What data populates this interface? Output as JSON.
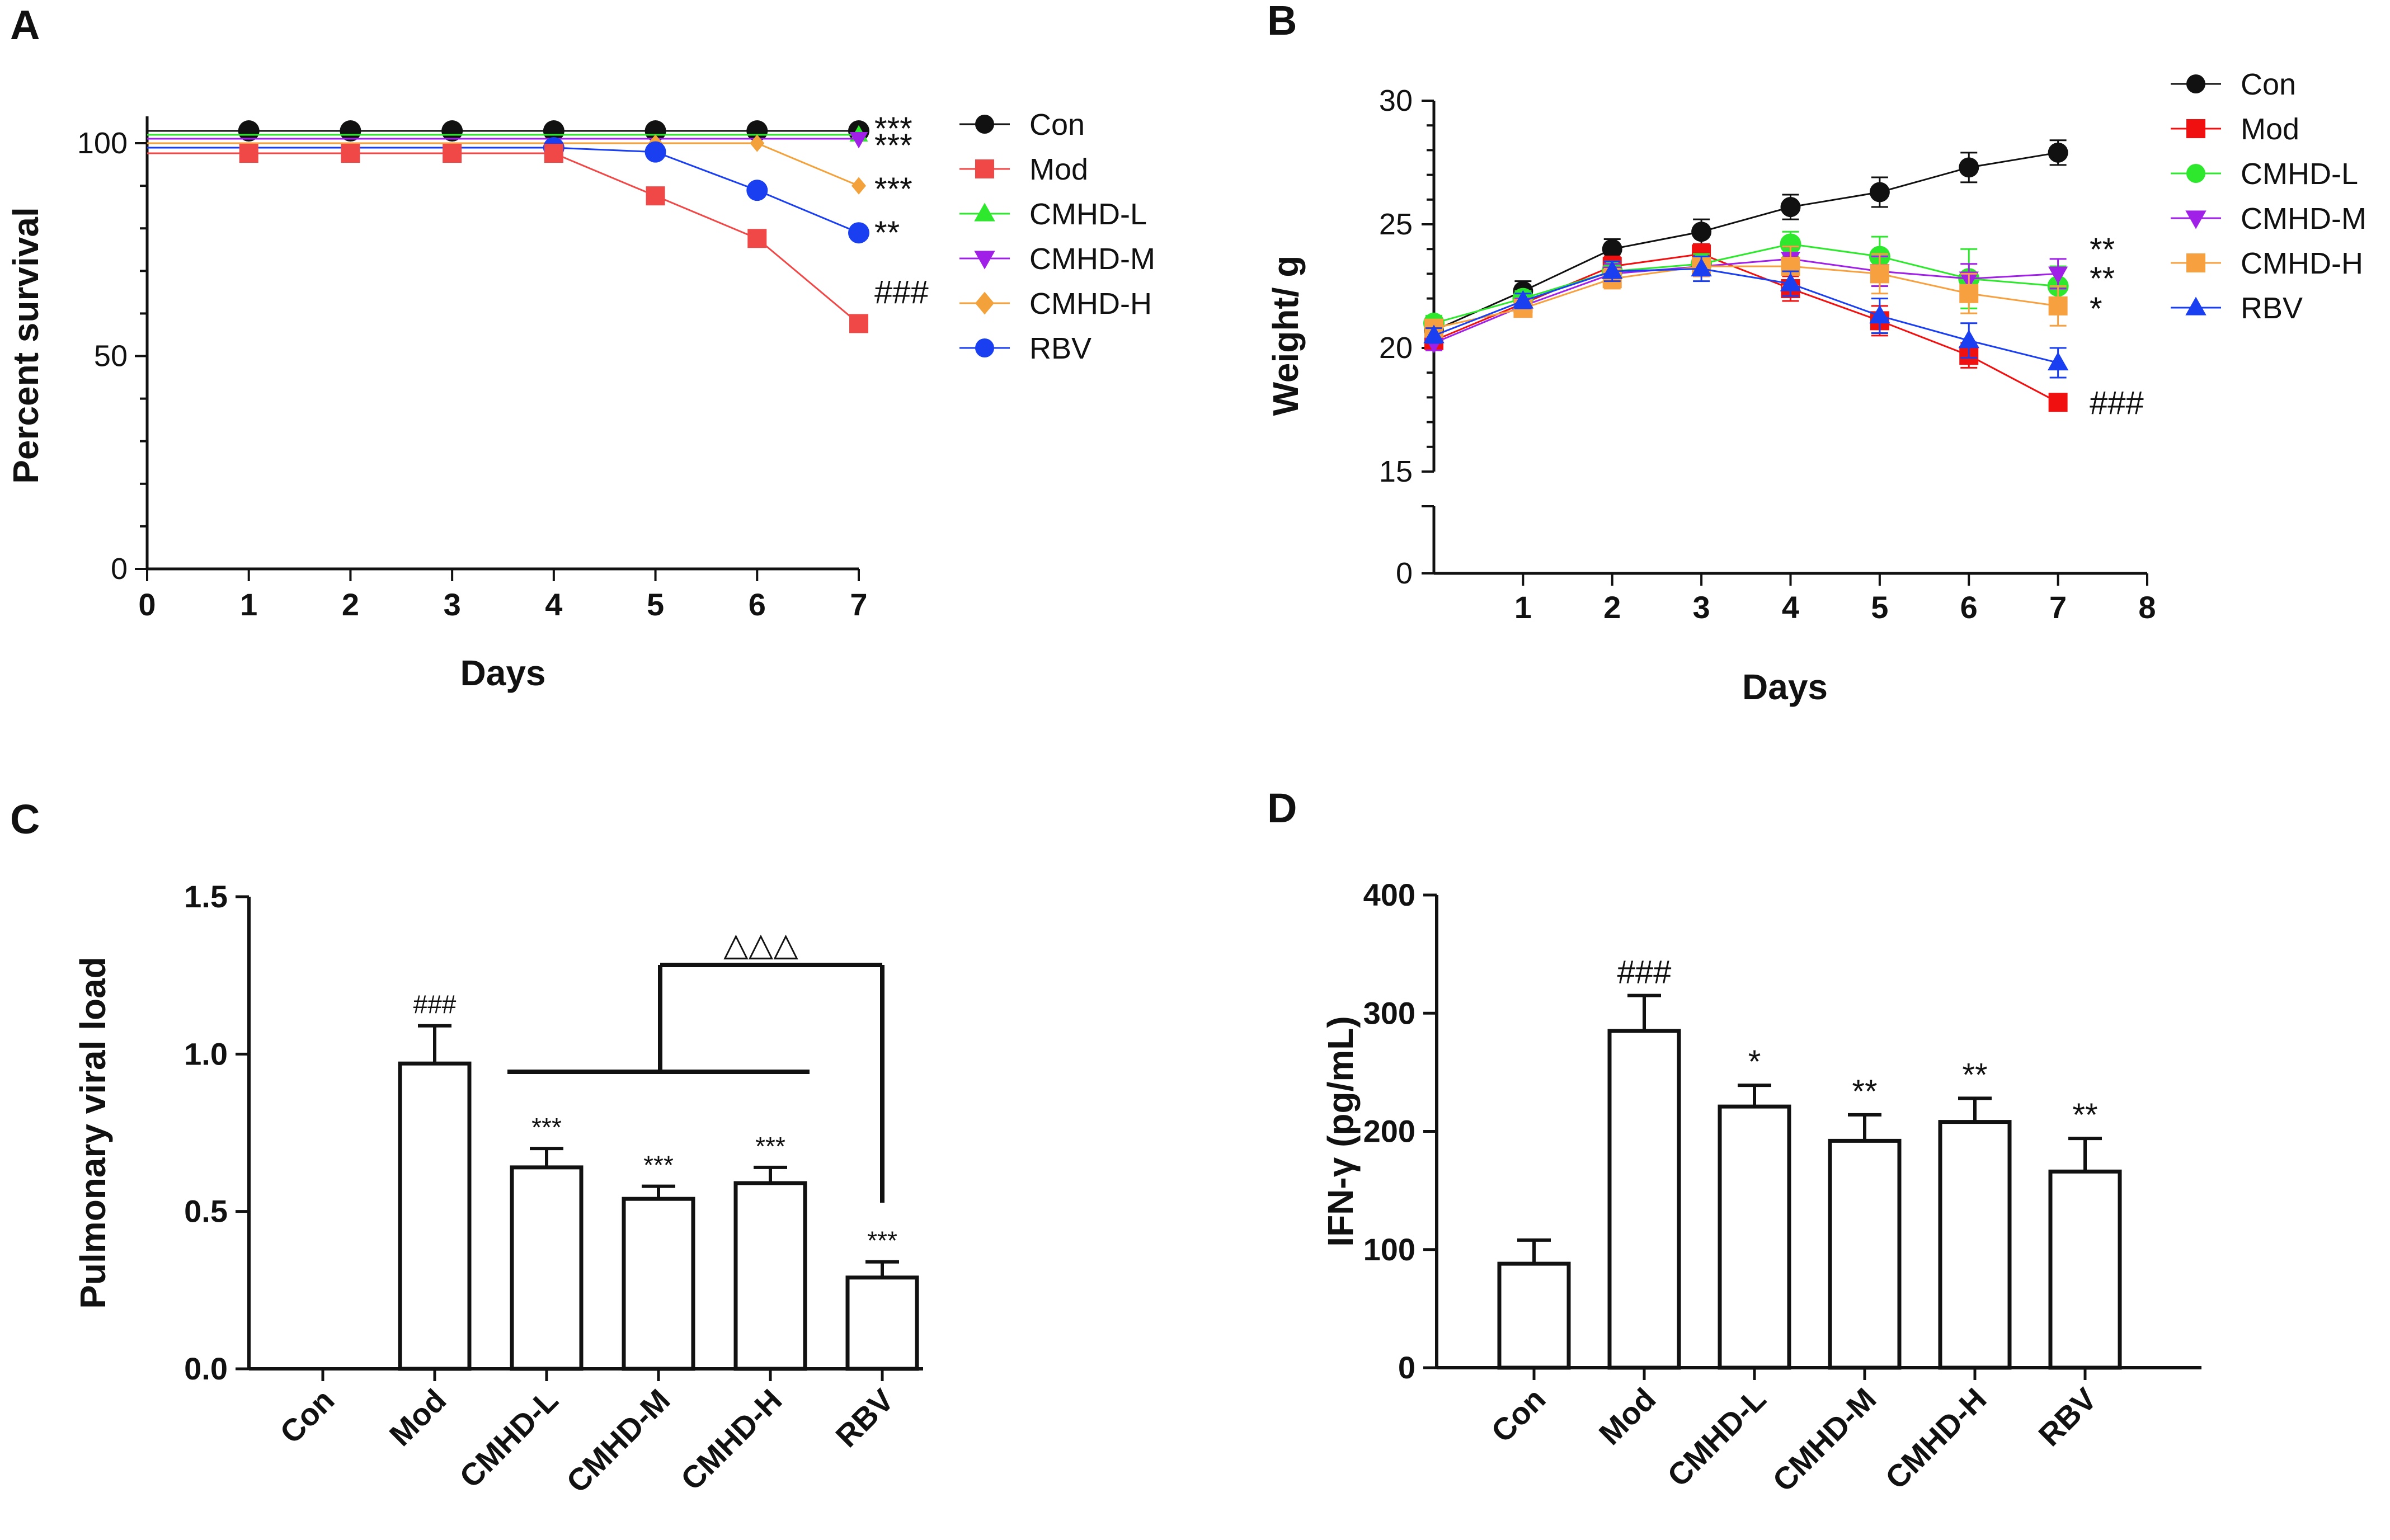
{
  "colors": {
    "con": "#111111",
    "mod": "#f04747",
    "cmhd_l": "#2ee82e",
    "cmhd_m": "#a020e8",
    "cmhd_h": "#f3a13a",
    "rbv": "#1a3ff0",
    "mod_weight": "#f01010",
    "cmhd_h_weight": "#f7a040",
    "rbv_weight": "#1a3ff0",
    "axis": "#111111"
  },
  "chart_data": [
    {
      "panel": "A",
      "type": "line",
      "xlabel": "Days",
      "ylabel": "Percent survival",
      "xlim": [
        0,
        7
      ],
      "ylim": [
        0,
        105
      ],
      "x_ticks": [
        "0",
        "1",
        "2",
        "3",
        "4",
        "5",
        "6",
        "7"
      ],
      "y_ticks": [
        "0",
        "50",
        "100"
      ],
      "legend": [
        "Con",
        "Mod",
        "CMHD-L",
        "CMHD-M",
        "CMHD-H",
        "RBV"
      ],
      "series": [
        {
          "name": "Con",
          "marker": "circle",
          "x": [
            0,
            1,
            2,
            3,
            4,
            5,
            6,
            7
          ],
          "y": [
            100,
            100,
            100,
            100,
            100,
            100,
            100,
            100
          ],
          "label": "***"
        },
        {
          "name": "CMHD-L",
          "marker": "triangle-up",
          "x": [
            0,
            7
          ],
          "y": [
            100,
            100
          ],
          "label": "***"
        },
        {
          "name": "CMHD-M",
          "marker": "triangle-down",
          "x": [
            0,
            7
          ],
          "y": [
            100,
            100
          ],
          "label": ""
        },
        {
          "name": "CMHD-H",
          "marker": "diamond",
          "x": [
            0,
            5,
            6,
            7
          ],
          "y": [
            100,
            100,
            100,
            90
          ],
          "label": "***"
        },
        {
          "name": "RBV",
          "marker": "circle",
          "x": [
            0,
            4,
            5,
            6,
            7
          ],
          "y": [
            100,
            100,
            99,
            90,
            80
          ],
          "label": "**"
        },
        {
          "name": "Mod",
          "marker": "square",
          "x": [
            0,
            1,
            2,
            3,
            4,
            5,
            6,
            7
          ],
          "y": [
            100,
            100,
            100,
            100,
            100,
            90,
            80,
            60
          ],
          "label": "###"
        }
      ]
    },
    {
      "panel": "B",
      "type": "line",
      "xlabel": "Days",
      "ylabel": "Weight/ g",
      "xlim": [
        0,
        8
      ],
      "ylim": [
        0,
        30
      ],
      "axis_break": [
        0,
        15
      ],
      "x_ticks": [
        "1",
        "2",
        "3",
        "4",
        "5",
        "6",
        "7",
        "8"
      ],
      "y_ticks": [
        "0",
        "15",
        "20",
        "25",
        "30"
      ],
      "legend": [
        "Con",
        "Mod",
        "CMHD-L",
        "CMHD-M",
        "CMHD-H",
        "RBV"
      ],
      "series": [
        {
          "name": "Con",
          "marker": "circle",
          "x": [
            0,
            1,
            2,
            3,
            4,
            5,
            6,
            7
          ],
          "y": [
            20.7,
            22.3,
            24.0,
            24.7,
            25.7,
            26.3,
            27.3,
            27.9
          ],
          "err": [
            0.3,
            0.4,
            0.4,
            0.5,
            0.5,
            0.6,
            0.6,
            0.5
          ],
          "label": ""
        },
        {
          "name": "Mod",
          "marker": "square",
          "x": [
            0,
            1,
            2,
            3,
            4,
            5,
            6,
            7
          ],
          "y": [
            20.3,
            21.8,
            23.3,
            23.8,
            22.4,
            21.1,
            19.7,
            17.8
          ],
          "err": [
            0.3,
            0.3,
            0.4,
            0.4,
            0.5,
            0.6,
            0.5,
            0.3
          ],
          "label": "###"
        },
        {
          "name": "CMHD-L",
          "marker": "circle",
          "x": [
            0,
            1,
            2,
            3,
            4,
            5,
            6,
            7
          ],
          "y": [
            21.0,
            22.0,
            23.1,
            23.4,
            24.2,
            23.7,
            22.8,
            22.5
          ],
          "err": [
            0.3,
            0.3,
            0.4,
            0.4,
            0.5,
            0.8,
            1.2,
            0.8
          ],
          "label": "**"
        },
        {
          "name": "CMHD-M",
          "marker": "triangle-down",
          "x": [
            0,
            1,
            2,
            3,
            4,
            5,
            6,
            7
          ],
          "y": [
            20.2,
            21.7,
            23.0,
            23.3,
            23.6,
            23.1,
            22.8,
            23.0
          ],
          "err": [
            0.3,
            0.3,
            0.4,
            0.4,
            0.5,
            0.6,
            0.6,
            0.6
          ],
          "label": "**"
        },
        {
          "name": "CMHD-H",
          "marker": "square",
          "x": [
            0,
            1,
            2,
            3,
            4,
            5,
            6,
            7
          ],
          "y": [
            20.8,
            21.6,
            22.8,
            23.3,
            23.3,
            23.0,
            22.2,
            21.7
          ],
          "err": [
            0.3,
            0.3,
            0.4,
            0.4,
            0.8,
            0.8,
            0.8,
            0.8
          ],
          "label": "*"
        },
        {
          "name": "RBV",
          "marker": "triangle-up",
          "x": [
            0,
            1,
            2,
            3,
            4,
            5,
            6,
            7
          ],
          "y": [
            20.5,
            21.9,
            23.1,
            23.2,
            22.6,
            21.3,
            20.3,
            19.4
          ],
          "err": [
            0.3,
            0.3,
            0.4,
            0.5,
            0.5,
            0.7,
            0.7,
            0.6
          ],
          "label": ""
        }
      ]
    },
    {
      "panel": "C",
      "type": "bar",
      "xlabel": "",
      "ylabel": "Pulmonary viral load",
      "ylim": [
        0,
        1.5
      ],
      "y_ticks": [
        "0.0",
        "0.5",
        "1.0",
        "1.5"
      ],
      "categories": [
        "Con",
        "Mod",
        "CMHD-L",
        "CMHD-M",
        "CMHD-H",
        "RBV"
      ],
      "values": [
        0,
        0.97,
        0.64,
        0.54,
        0.59,
        0.29
      ],
      "errors": [
        0,
        0.12,
        0.06,
        0.04,
        0.05,
        0.05
      ],
      "labels": [
        "",
        "###",
        "***",
        "***",
        "***",
        "***"
      ],
      "bracket_label": "△△△"
    },
    {
      "panel": "D",
      "type": "bar",
      "xlabel": "",
      "ylabel": "IFN-γ (pg/mL)",
      "ylim": [
        0,
        400
      ],
      "y_ticks": [
        "0",
        "100",
        "200",
        "300",
        "400"
      ],
      "categories": [
        "Con",
        "Mod",
        "CMHD-L",
        "CMHD-M",
        "CMHD-H",
        "RBV"
      ],
      "values": [
        88,
        285,
        221,
        192,
        208,
        166
      ],
      "errors": [
        20,
        30,
        18,
        22,
        20,
        28
      ],
      "labels": [
        "",
        "###",
        "*",
        "**",
        "**",
        "**"
      ]
    }
  ]
}
